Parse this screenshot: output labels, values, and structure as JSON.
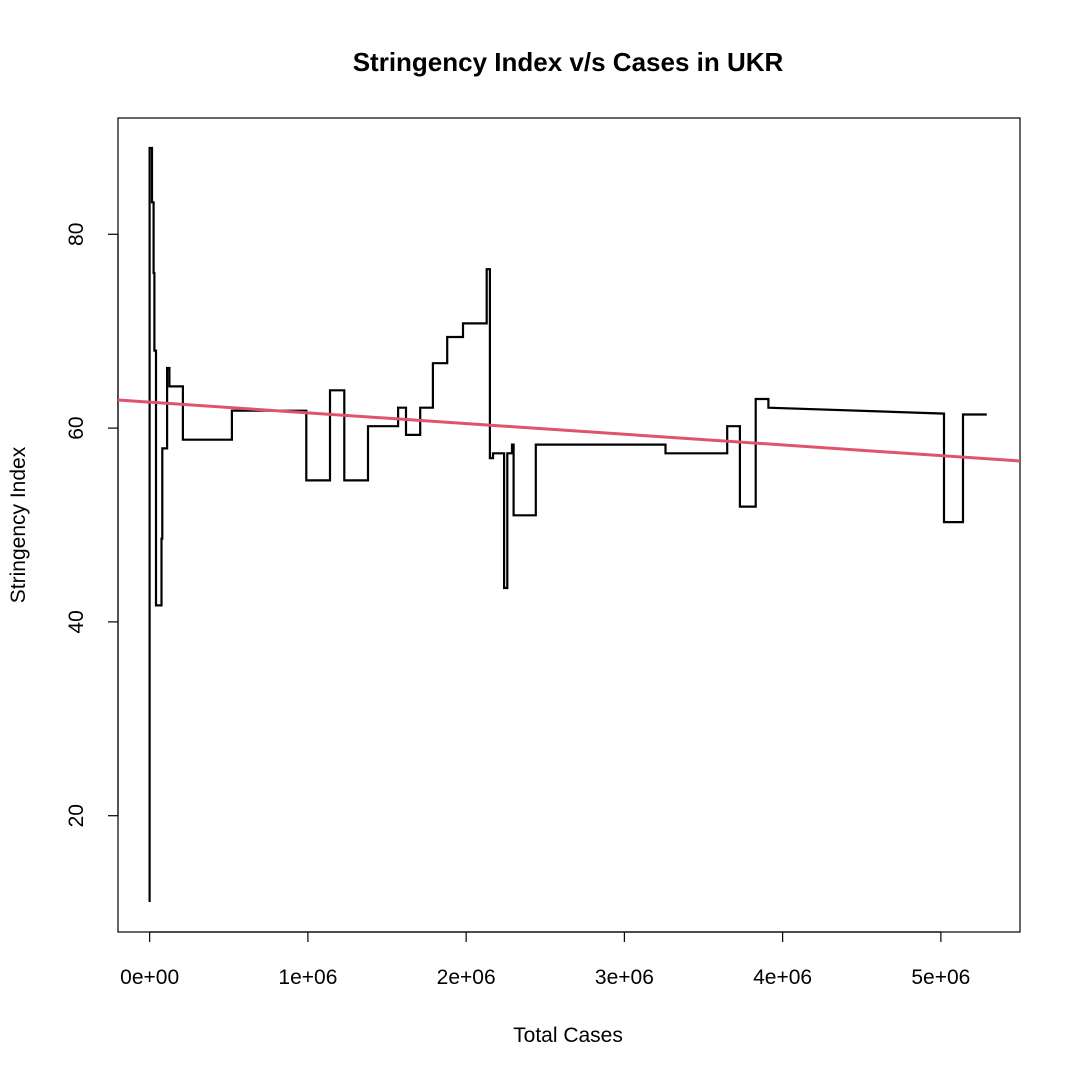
{
  "chart_data": {
    "type": "line",
    "title": "Stringency Index v/s Cases in UKR",
    "xlabel": "Total Cases",
    "ylabel": "Stringency Index",
    "xlim": [
      -200000,
      5500000
    ],
    "ylim": [
      8,
      92
    ],
    "xticks": [
      0,
      1000000,
      2000000,
      3000000,
      4000000,
      5000000
    ],
    "xtick_labels": [
      "0e+00",
      "1e+06",
      "2e+06",
      "3e+06",
      "4e+06",
      "5e+06"
    ],
    "yticks": [
      20,
      40,
      60,
      80
    ],
    "ytick_labels": [
      "20",
      "40",
      "60",
      "80"
    ],
    "grid": false,
    "series": [
      {
        "color": "#000000",
        "points": [
          [
            0,
            11.1
          ],
          [
            0,
            88.9
          ],
          [
            15000,
            88.9
          ],
          [
            15000,
            83.3
          ],
          [
            25000,
            83.3
          ],
          [
            25000,
            76.0
          ],
          [
            30000,
            76.0
          ],
          [
            30000,
            68.0
          ],
          [
            40000,
            68.0
          ],
          [
            40000,
            41.7
          ],
          [
            75000,
            41.7
          ],
          [
            75000,
            48.6
          ],
          [
            80000,
            48.6
          ],
          [
            80000,
            57.9
          ],
          [
            110000,
            57.9
          ],
          [
            110000,
            66.2
          ],
          [
            125000,
            66.2
          ],
          [
            125000,
            64.3
          ],
          [
            210000,
            64.3
          ],
          [
            210000,
            58.8
          ],
          [
            520000,
            58.8
          ],
          [
            520000,
            61.8
          ],
          [
            990000,
            61.8
          ],
          [
            990000,
            54.6
          ],
          [
            1140000,
            54.6
          ],
          [
            1140000,
            63.9
          ],
          [
            1230000,
            63.9
          ],
          [
            1230000,
            54.6
          ],
          [
            1380000,
            54.6
          ],
          [
            1380000,
            60.2
          ],
          [
            1570000,
            60.2
          ],
          [
            1570000,
            62.1
          ],
          [
            1620000,
            62.1
          ],
          [
            1620000,
            59.3
          ],
          [
            1710000,
            59.3
          ],
          [
            1710000,
            62.1
          ],
          [
            1790000,
            62.1
          ],
          [
            1790000,
            66.7
          ],
          [
            1880000,
            66.7
          ],
          [
            1880000,
            69.4
          ],
          [
            1980000,
            69.4
          ],
          [
            1980000,
            70.8
          ],
          [
            2130000,
            70.8
          ],
          [
            2130000,
            76.4
          ],
          [
            2150000,
            76.4
          ],
          [
            2150000,
            56.9
          ],
          [
            2170000,
            56.9
          ],
          [
            2170000,
            57.4
          ],
          [
            2240000,
            57.4
          ],
          [
            2240000,
            43.5
          ],
          [
            2260000,
            43.5
          ],
          [
            2260000,
            57.4
          ],
          [
            2290000,
            57.4
          ],
          [
            2290000,
            58.3
          ],
          [
            2300000,
            58.3
          ],
          [
            2300000,
            51.0
          ],
          [
            2440000,
            51.0
          ],
          [
            2440000,
            58.3
          ],
          [
            3260000,
            58.3
          ],
          [
            3260000,
            57.4
          ],
          [
            3650000,
            57.4
          ],
          [
            3650000,
            60.2
          ],
          [
            3730000,
            60.2
          ],
          [
            3730000,
            51.9
          ],
          [
            3830000,
            51.9
          ],
          [
            3830000,
            63.0
          ],
          [
            3910000,
            63.0
          ],
          [
            3910000,
            62.1
          ],
          [
            5020000,
            61.5
          ],
          [
            5020000,
            50.3
          ],
          [
            5140000,
            50.3
          ],
          [
            5140000,
            61.4
          ],
          [
            5290000,
            61.4
          ]
        ]
      },
      {
        "color": "#DF536B",
        "type": "regression",
        "points": [
          [
            -200000,
            62.9
          ],
          [
            5500000,
            56.6
          ]
        ]
      }
    ]
  }
}
